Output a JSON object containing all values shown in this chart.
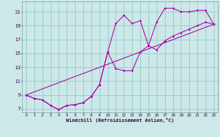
{
  "xlabel": "Windchill (Refroidissement éolien,°C)",
  "bg_color": "#cce8e8",
  "grid_color": "#99cccc",
  "line_color": "#aa00aa",
  "xlim": [
    -0.5,
    23.5
  ],
  "ylim": [
    6.5,
    22.5
  ],
  "yticks": [
    7,
    9,
    11,
    13,
    15,
    17,
    19,
    21
  ],
  "xticks": [
    0,
    1,
    2,
    3,
    4,
    5,
    6,
    7,
    8,
    9,
    10,
    11,
    12,
    13,
    14,
    15,
    16,
    17,
    18,
    19,
    20,
    21,
    22,
    23
  ],
  "series1_x": [
    0,
    1,
    2,
    3,
    4,
    5,
    6,
    7,
    8,
    9,
    10,
    11,
    12,
    13,
    14,
    15,
    16,
    17,
    18,
    19,
    20,
    21,
    22,
    23
  ],
  "series1_y": [
    9.0,
    8.5,
    8.3,
    7.5,
    6.9,
    7.5,
    7.6,
    7.9,
    8.8,
    10.5,
    15.2,
    19.3,
    20.5,
    19.3,
    19.7,
    16.1,
    19.5,
    21.5,
    21.5,
    21.0,
    21.0,
    21.2,
    21.2,
    19.2
  ],
  "series2_x": [
    0,
    1,
    2,
    3,
    4,
    5,
    6,
    7,
    8,
    9,
    10,
    11,
    12,
    13,
    14,
    15,
    16,
    17,
    18,
    19,
    20,
    21,
    22,
    23
  ],
  "series2_y": [
    9.0,
    8.5,
    8.3,
    7.5,
    6.9,
    7.5,
    7.6,
    7.9,
    8.8,
    10.5,
    15.2,
    12.8,
    12.5,
    12.5,
    15.2,
    16.1,
    15.5,
    16.8,
    17.5,
    18.0,
    18.5,
    19.0,
    19.5,
    19.2
  ],
  "series3_x": [
    0,
    23
  ],
  "series3_y": [
    9.0,
    19.2
  ]
}
